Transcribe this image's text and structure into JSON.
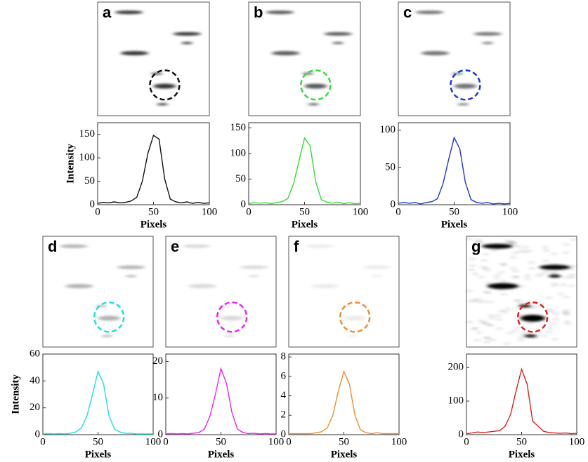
{
  "chart_data": [
    {
      "type": "line",
      "label": "a",
      "color": "#111111",
      "xlabel": "Pixels",
      "ylabel": "Intensity",
      "x": [
        0,
        5,
        10,
        15,
        20,
        25,
        30,
        35,
        40,
        45,
        50,
        55,
        60,
        65,
        70,
        75,
        80,
        85,
        90,
        95,
        100
      ],
      "values": [
        3,
        5,
        4,
        6,
        4,
        5,
        8,
        16,
        50,
        110,
        148,
        140,
        55,
        12,
        6,
        4,
        6,
        3,
        5,
        3,
        4
      ],
      "xlim": [
        0,
        100
      ],
      "xticks": [
        0,
        50,
        100
      ],
      "ylim": [
        0,
        175
      ],
      "yticks": [
        0,
        50,
        100,
        150
      ]
    },
    {
      "type": "line",
      "label": "b",
      "color": "#33dd33",
      "xlabel": "Pixels",
      "x": [
        0,
        5,
        10,
        15,
        20,
        25,
        30,
        35,
        40,
        45,
        50,
        55,
        60,
        65,
        70,
        75,
        80,
        85,
        90,
        95,
        100
      ],
      "values": [
        2,
        4,
        3,
        4,
        2,
        4,
        6,
        12,
        40,
        85,
        130,
        115,
        45,
        10,
        5,
        3,
        5,
        2,
        4,
        2,
        3
      ],
      "xlim": [
        0,
        100
      ],
      "xticks": [
        0,
        50,
        100
      ],
      "ylim": [
        0,
        160
      ],
      "yticks": [
        0,
        50,
        100,
        150
      ]
    },
    {
      "type": "line",
      "label": "c",
      "color": "#2233dd",
      "xlabel": "Pixels",
      "x": [
        0,
        5,
        10,
        15,
        20,
        25,
        30,
        35,
        40,
        45,
        50,
        55,
        60,
        65,
        70,
        75,
        80,
        85,
        90,
        95,
        100
      ],
      "values": [
        2,
        3,
        2,
        3,
        1,
        3,
        4,
        8,
        28,
        60,
        90,
        75,
        30,
        7,
        3,
        2,
        3,
        1,
        2,
        1,
        2
      ],
      "xlim": [
        0,
        100
      ],
      "xticks": [
        0,
        50,
        100
      ],
      "ylim": [
        0,
        110
      ],
      "yticks": [
        0,
        50,
        100
      ]
    },
    {
      "type": "line",
      "label": "d",
      "color": "#22dddd",
      "xlabel": "Pixels",
      "ylabel": "Intensity",
      "x": [
        0,
        5,
        10,
        15,
        20,
        25,
        30,
        35,
        40,
        45,
        50,
        55,
        60,
        65,
        70,
        75,
        80,
        85,
        90,
        95,
        100
      ],
      "values": [
        0.5,
        0.8,
        0.5,
        0.8,
        0.5,
        1,
        2,
        5,
        14,
        30,
        47,
        38,
        14,
        4,
        2,
        1,
        1,
        0.5,
        0.5,
        0.5,
        0.5
      ],
      "xlim": [
        0,
        100
      ],
      "xticks": [
        0,
        50,
        100
      ],
      "ylim": [
        0,
        60
      ],
      "yticks": [
        0,
        20,
        40,
        60
      ]
    },
    {
      "type": "line",
      "label": "e",
      "color": "#ee22ee",
      "xlabel": "Pixels",
      "x": [
        0,
        5,
        10,
        15,
        20,
        25,
        30,
        35,
        40,
        45,
        50,
        55,
        60,
        65,
        70,
        75,
        80,
        85,
        90,
        95,
        100
      ],
      "values": [
        0.2,
        0.3,
        0.2,
        0.3,
        0.2,
        0.4,
        0.6,
        1.5,
        5,
        11,
        18,
        14,
        6,
        1.5,
        0.6,
        0.3,
        0.4,
        0.2,
        0.3,
        0.2,
        0.2
      ],
      "xlim": [
        0,
        100
      ],
      "xticks": [
        0,
        50,
        100
      ],
      "ylim": [
        0,
        22
      ],
      "yticks": [
        0,
        10,
        20
      ]
    },
    {
      "type": "line",
      "label": "f",
      "color": "#f08c30",
      "xlabel": "Pixels",
      "x": [
        0,
        5,
        10,
        15,
        20,
        25,
        30,
        35,
        40,
        45,
        50,
        55,
        60,
        65,
        70,
        75,
        80,
        85,
        90,
        95,
        100
      ],
      "values": [
        0.1,
        0.1,
        0.1,
        0.1,
        0.1,
        0.2,
        0.3,
        0.7,
        2,
        4.5,
        6.5,
        5.2,
        2,
        0.5,
        0.2,
        0.1,
        0.2,
        0.1,
        0.1,
        0.1,
        0.1
      ],
      "xlim": [
        0,
        100
      ],
      "xticks": [
        0,
        50,
        100
      ],
      "ylim": [
        0,
        8.3
      ],
      "yticks": [
        0,
        2,
        4,
        6,
        8
      ]
    },
    {
      "type": "line",
      "label": "g",
      "color": "#dd2222",
      "xlabel": "Pixels",
      "x": [
        0,
        5,
        10,
        15,
        20,
        25,
        30,
        35,
        40,
        45,
        50,
        55,
        60,
        65,
        70,
        75,
        80,
        85,
        90,
        95,
        100
      ],
      "values": [
        3,
        5,
        8,
        6,
        8,
        10,
        12,
        25,
        60,
        130,
        195,
        150,
        40,
        25,
        10,
        6,
        5,
        4,
        5,
        3,
        4
      ],
      "xlim": [
        0,
        100
      ],
      "xticks": [
        0,
        50,
        100
      ],
      "ylim": [
        0,
        240
      ],
      "yticks": [
        0,
        100,
        200
      ]
    }
  ]
}
